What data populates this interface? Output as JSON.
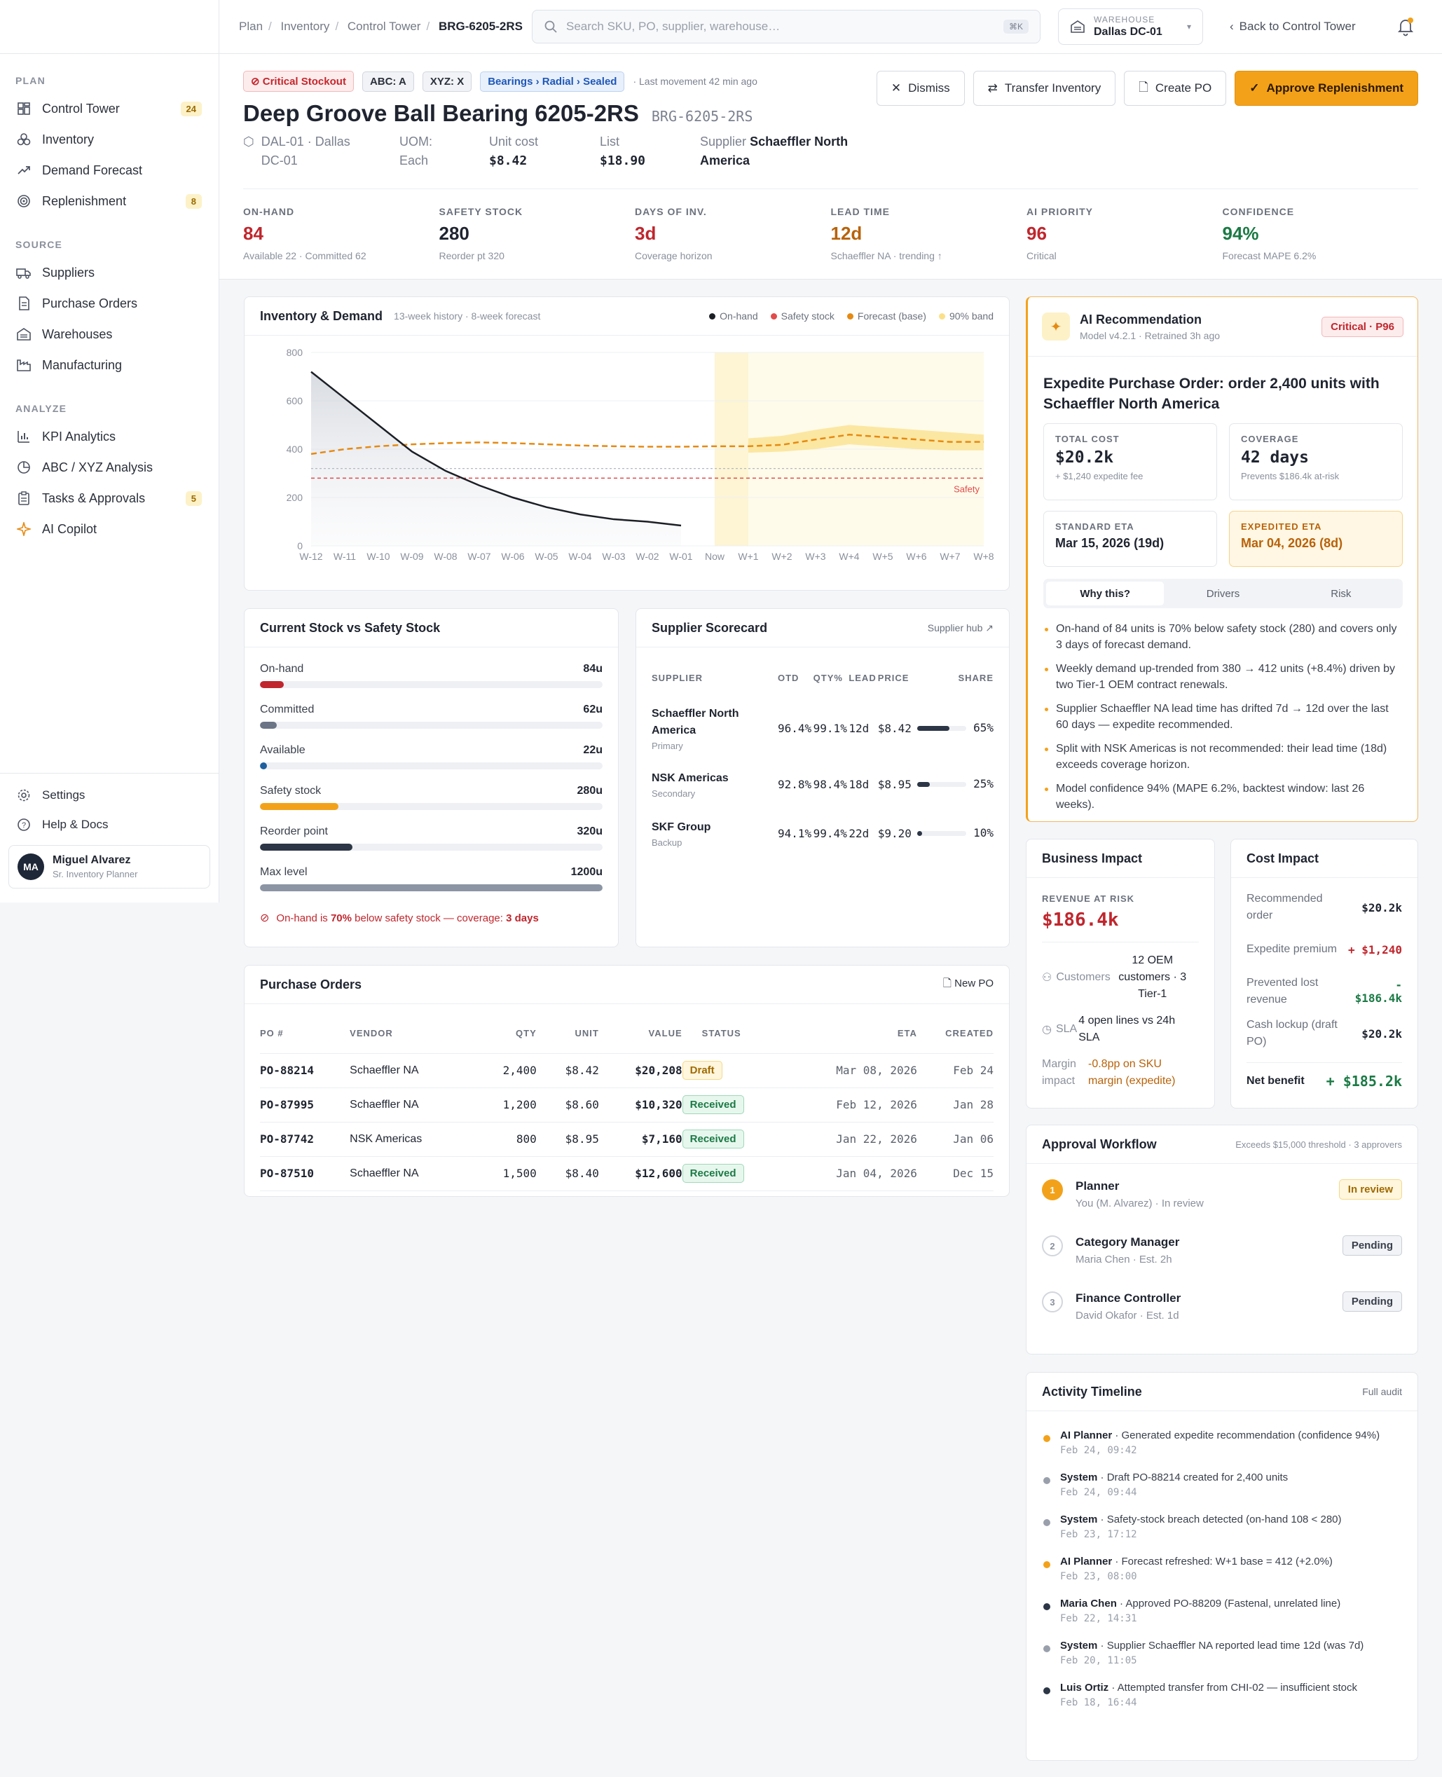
{
  "breadcrumb": [
    "Plan",
    "Inventory",
    "Control Tower",
    "BRG-6205-2RS"
  ],
  "search": {
    "placeholder": "Search SKU, PO, supplier, warehouse…",
    "shortcut": "⌘K"
  },
  "warehouse": {
    "label": "WAREHOUSE",
    "value": "Dallas DC-01"
  },
  "back_label": "Back to Control Tower",
  "sidebar": {
    "plan_title": "PLAN",
    "plan_items": [
      {
        "label": "Control Tower",
        "badge": "24",
        "icon": "grid-icon"
      },
      {
        "label": "Inventory",
        "badge": "",
        "icon": "boxes-icon"
      },
      {
        "label": "Demand Forecast",
        "badge": "",
        "icon": "trend-icon"
      },
      {
        "label": "Replenishment",
        "badge": "8",
        "icon": "target-icon"
      }
    ],
    "source_title": "SOURCE",
    "source_items": [
      {
        "label": "Suppliers",
        "icon": "truck-icon"
      },
      {
        "label": "Purchase Orders",
        "icon": "document-icon"
      },
      {
        "label": "Warehouses",
        "icon": "warehouse-icon"
      },
      {
        "label": "Manufacturing",
        "icon": "factory-icon"
      }
    ],
    "analyze_title": "ANALYZE",
    "analyze_items": [
      {
        "label": "KPI Analytics",
        "badge": "",
        "icon": "bar-chart-icon"
      },
      {
        "label": "ABC / XYZ Analysis",
        "badge": "",
        "icon": "pie-icon"
      },
      {
        "label": "Tasks & Approvals",
        "badge": "5",
        "icon": "clipboard-icon"
      },
      {
        "label": "AI Copilot",
        "badge": "",
        "icon": "sparkle-icon"
      }
    ],
    "settings": "Settings",
    "help": "Help & Docs",
    "user": {
      "initials": "MA",
      "name": "Miguel Alvarez",
      "role": "Sr. Inventory Planner"
    }
  },
  "header": {
    "tags": {
      "critical": "Critical Stockout",
      "abc": "ABC: A",
      "xyz": "XYZ: X",
      "category": "Bearings › Radial › Sealed"
    },
    "last_movement": "· Last movement 42 min ago",
    "title": "Deep Groove Ball Bearing 6205-2RS",
    "sku": "BRG-6205-2RS",
    "location": "DAL-01 · Dallas DC-01",
    "uom_label": "UOM:",
    "uom": "Each",
    "unit_cost_label": "Unit cost",
    "unit_cost": "$8.42",
    "list_label": "List",
    "list": "$18.90",
    "supplier_label": "Supplier",
    "supplier": "Schaeffler North America",
    "buttons": {
      "dismiss": "Dismiss",
      "transfer": "Transfer Inventory",
      "create_po": "Create PO",
      "approve": "Approve Replenishment"
    }
  },
  "kpis": [
    {
      "label": "ON-HAND",
      "value": "84",
      "sub": "Available 22 · Committed 62",
      "color": "#c0262d"
    },
    {
      "label": "SAFETY STOCK",
      "value": "280",
      "sub": "Reorder pt 320",
      "color": "#1f2430"
    },
    {
      "label": "DAYS OF INV.",
      "value": "3d",
      "sub": "Coverage horizon",
      "color": "#c0262d"
    },
    {
      "label": "LEAD TIME",
      "value": "12d",
      "sub": "Schaeffler NA · trending ↑",
      "color": "#b8620a"
    },
    {
      "label": "AI PRIORITY",
      "value": "96",
      "sub": "Critical",
      "color": "#c0262d"
    },
    {
      "label": "CONFIDENCE",
      "value": "94%",
      "sub": "Forecast MAPE 6.2%",
      "color": "#1b7a45"
    }
  ],
  "chart_card": {
    "title": "Inventory & Demand",
    "subtitle": "13-week history · 8-week forecast",
    "legend": [
      "On-hand",
      "Safety stock",
      "Forecast (base)",
      "90% band"
    ],
    "safety_label": "Safety"
  },
  "chart_data": {
    "type": "line",
    "x": [
      "W-12",
      "W-11",
      "W-10",
      "W-09",
      "W-08",
      "W-07",
      "W-06",
      "W-05",
      "W-04",
      "W-03",
      "W-02",
      "W-01",
      "Now",
      "W+1",
      "W+2",
      "W+3",
      "W+4",
      "W+5",
      "W+6",
      "W+7",
      "W+8"
    ],
    "ylim": [
      0,
      800
    ],
    "yticks": [
      0,
      200,
      400,
      600,
      800
    ],
    "series": [
      {
        "name": "On-hand",
        "color": "#1c1f26",
        "values": [
          720,
          610,
          500,
          390,
          310,
          250,
          200,
          160,
          130,
          110,
          100,
          84,
          null,
          null,
          null,
          null,
          null,
          null,
          null,
          null,
          null
        ]
      },
      {
        "name": "Safety stock",
        "color": "#e24b4b",
        "values": [
          280,
          280,
          280,
          280,
          280,
          280,
          280,
          280,
          280,
          280,
          280,
          280,
          280,
          280,
          280,
          280,
          280,
          280,
          280,
          280,
          280
        ]
      },
      {
        "name": "Forecast (base)",
        "color": "#e58a12",
        "values": [
          380,
          400,
          412,
          420,
          425,
          428,
          425,
          420,
          415,
          412,
          410,
          410,
          412,
          412,
          418,
          440,
          460,
          450,
          440,
          430,
          430
        ]
      },
      {
        "name": "90% band",
        "color": "#fbe08a",
        "upper": [
          null,
          null,
          null,
          null,
          null,
          null,
          null,
          null,
          null,
          null,
          null,
          null,
          null,
          445,
          455,
          480,
          500,
          490,
          480,
          470,
          460
        ],
        "lower": [
          null,
          null,
          null,
          null,
          null,
          null,
          null,
          null,
          null,
          null,
          null,
          null,
          null,
          385,
          390,
          400,
          420,
          410,
          400,
          395,
          395
        ]
      }
    ],
    "threshold_line": 320
  },
  "stock_card": {
    "title": "Current Stock vs Safety Stock",
    "rows": [
      {
        "label": "On-hand",
        "value": "84u",
        "pct": 7,
        "color": "#c0262d"
      },
      {
        "label": "Committed",
        "value": "62u",
        "pct": 5,
        "color": "#6b7586"
      },
      {
        "label": "Available",
        "value": "22u",
        "pct": 2,
        "color": "#1f5f9e"
      },
      {
        "label": "Safety stock",
        "value": "280u",
        "pct": 23,
        "color": "#f2a21a"
      },
      {
        "label": "Reorder point",
        "value": "320u",
        "pct": 27,
        "color": "#2d3646"
      },
      {
        "label": "Max level",
        "value": "1200u",
        "pct": 100,
        "color": "#8c95a4"
      }
    ],
    "alert_pre": "On-hand is ",
    "alert_bold": "70%",
    "alert_mid": " below safety stock — coverage: ",
    "alert_bold2": "3 days"
  },
  "supplier_card": {
    "title": "Supplier Scorecard",
    "link": "Supplier hub",
    "headers": [
      "SUPPLIER",
      "OTD",
      "QTY%",
      "LEAD",
      "PRICE",
      "SHARE"
    ],
    "rows": [
      {
        "name": "Schaeffler North America",
        "role": "Primary",
        "otd": "96.4%",
        "qty": "99.1%",
        "lead": "12d",
        "price": "$8.42",
        "share": "65%",
        "pct": 65
      },
      {
        "name": "NSK Americas",
        "role": "Secondary",
        "otd": "92.8%",
        "qty": "98.4%",
        "lead": "18d",
        "price": "$8.95",
        "share": "25%",
        "pct": 25
      },
      {
        "name": "SKF Group",
        "role": "Backup",
        "otd": "94.1%",
        "qty": "99.4%",
        "lead": "22d",
        "price": "$9.20",
        "share": "10%",
        "pct": 10
      }
    ]
  },
  "po_card": {
    "title": "Purchase Orders",
    "new_label": "New PO",
    "headers": [
      "PO #",
      "VENDOR",
      "QTY",
      "UNIT",
      "VALUE",
      "STATUS",
      "ETA",
      "CREATED"
    ],
    "rows": [
      {
        "po": "PO-88214",
        "vendor": "Schaeffler NA",
        "qty": "2,400",
        "unit": "$8.42",
        "value": "$20,208",
        "status": "Draft",
        "eta": "Mar 08, 2026",
        "created": "Feb 24"
      },
      {
        "po": "PO-87995",
        "vendor": "Schaeffler NA",
        "qty": "1,200",
        "unit": "$8.60",
        "value": "$10,320",
        "status": "Received",
        "eta": "Feb 12, 2026",
        "created": "Jan 28"
      },
      {
        "po": "PO-87742",
        "vendor": "NSK Americas",
        "qty": "800",
        "unit": "$8.95",
        "value": "$7,160",
        "status": "Received",
        "eta": "Jan 22, 2026",
        "created": "Jan 06"
      },
      {
        "po": "PO-87510",
        "vendor": "Schaeffler NA",
        "qty": "1,500",
        "unit": "$8.40",
        "value": "$12,600",
        "status": "Received",
        "eta": "Jan 04, 2026",
        "created": "Dec 15"
      }
    ]
  },
  "ai_card": {
    "title": "AI Recommendation",
    "model": "Model v4.2.1 · Retrained 3h ago",
    "badge": "Critical · P96",
    "headline": "Expedite Purchase Order: order 2,400 units with Schaeffler North America",
    "total_cost_label": "TOTAL COST",
    "total_cost": "$20.2k",
    "total_cost_sub": "+ $1,240 expedite fee",
    "coverage_label": "COVERAGE",
    "coverage": "42 days",
    "coverage_sub": "Prevents $186.4k at-risk",
    "std_eta_label": "STANDARD ETA",
    "std_eta": "Mar 15, 2026 (19d)",
    "exp_eta_label": "EXPEDITED ETA",
    "exp_eta": "Mar 04, 2026 (8d)",
    "tabs": [
      "Why this?",
      "Drivers",
      "Risk"
    ],
    "bullets": [
      "On-hand of 84 units is 70% below safety stock (280) and covers only 3 days of forecast demand.",
      "Weekly demand up-trended from 380 → 412 units (+8.4%) driven by two Tier-1 OEM contract renewals.",
      "Supplier Schaeffler NA lead time has drifted 7d → 12d over the last 60 days — expedite recommended.",
      "Split with NSK Americas is not recommended: their lead time (18d) exceeds coverage horizon.",
      "Model confidence 94% (MAPE 6.2%, backtest window: last 26 weeks)."
    ]
  },
  "business_impact": {
    "title": "Business Impact",
    "rev_label": "REVENUE AT RISK",
    "rev": "$186.4k",
    "customers_label": "Customers",
    "customers": "12 OEM customers · 3 Tier-1",
    "sla_label": "SLA",
    "sla": "4 open lines vs 24h SLA",
    "margin_label": "Margin impact",
    "margin": "-0.8pp on SKU margin (expedite)"
  },
  "cost_impact": {
    "title": "Cost Impact",
    "rows": [
      {
        "label": "Recommended order",
        "value": "$20.2k"
      },
      {
        "label": "Expedite premium",
        "value": "+ $1,240"
      },
      {
        "label": "Prevented lost revenue",
        "value": "- $186.4k"
      },
      {
        "label": "Cash lockup (draft PO)",
        "value": "$20.2k"
      }
    ],
    "net_label": "Net benefit",
    "net": "+ $185.2k"
  },
  "approval": {
    "title": "Approval Workflow",
    "sub": "Exceeds $15,000 threshold · 3 approvers",
    "steps": [
      {
        "n": "1",
        "role": "Planner",
        "who": "You (M. Alvarez) · In review",
        "status": "In review"
      },
      {
        "n": "2",
        "role": "Category Manager",
        "who": "Maria Chen · Est. 2h",
        "status": "Pending"
      },
      {
        "n": "3",
        "role": "Finance Controller",
        "who": "David Okafor · Est. 1d",
        "status": "Pending"
      }
    ]
  },
  "timeline": {
    "title": "Activity Timeline",
    "link": "Full audit",
    "items": [
      {
        "actor": "AI Planner",
        "text": " · Generated expedite recommendation (confidence 94%)",
        "time": "Feb 24, 09:42",
        "color": "#f2a21a"
      },
      {
        "actor": "System",
        "text": " · Draft PO-88214 created for 2,400 units",
        "time": "Feb 24, 09:44",
        "color": "#9aa0ab"
      },
      {
        "actor": "System",
        "text": " · Safety-stock breach detected (on-hand 108 < 280)",
        "time": "Feb 23, 17:12",
        "color": "#9aa0ab"
      },
      {
        "actor": "AI Planner",
        "text": " · Forecast refreshed: W+1 base = 412 (+2.0%)",
        "time": "Feb 23, 08:00",
        "color": "#f2a21a"
      },
      {
        "actor": "Maria Chen",
        "text": " · Approved PO-88209 (Fastenal, unrelated line)",
        "time": "Feb 22, 14:31",
        "color": "#2d3646"
      },
      {
        "actor": "System",
        "text": " · Supplier Schaeffler NA reported lead time 12d (was 7d)",
        "time": "Feb 20, 11:05",
        "color": "#9aa0ab"
      },
      {
        "actor": "Luis Ortiz",
        "text": " · Attempted transfer from CHI-02 — insufficient stock",
        "time": "Feb 18, 16:44",
        "color": "#2d3646"
      }
    ]
  }
}
